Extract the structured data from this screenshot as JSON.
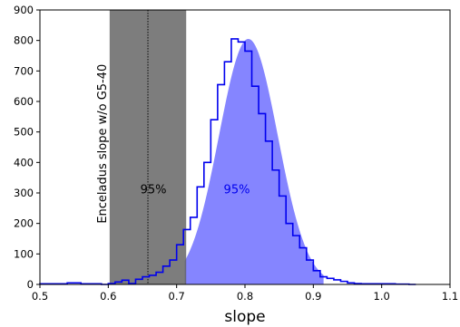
{
  "chart_data": {
    "type": "histogram",
    "xlabel": "slope",
    "ylabel": "",
    "xlim": [
      0.5,
      1.1
    ],
    "ylim": [
      0,
      900
    ],
    "x_ticks": [
      "0.5",
      "0.6",
      "0.7",
      "0.8",
      "0.9",
      "1.0",
      "1.1"
    ],
    "y_ticks": [
      "0",
      "100",
      "200",
      "300",
      "400",
      "500",
      "600",
      "700",
      "800",
      "900"
    ],
    "grid": false,
    "histogram": {
      "color": "#0000ee",
      "bin_width": 0.01,
      "bin_starts": [
        0.5,
        0.51,
        0.52,
        0.53,
        0.54,
        0.55,
        0.56,
        0.57,
        0.58,
        0.59,
        0.6,
        0.61,
        0.62,
        0.63,
        0.64,
        0.65,
        0.66,
        0.67,
        0.68,
        0.69,
        0.7,
        0.71,
        0.72,
        0.73,
        0.74,
        0.75,
        0.76,
        0.77,
        0.78,
        0.79,
        0.8,
        0.81,
        0.82,
        0.83,
        0.84,
        0.85,
        0.86,
        0.87,
        0.88,
        0.89,
        0.9,
        0.91,
        0.92,
        0.93,
        0.94,
        0.95,
        0.96,
        0.97,
        0.98,
        0.99,
        1.0,
        1.01,
        1.02,
        1.03,
        1.04
      ],
      "counts": [
        2,
        2,
        2,
        2,
        5,
        5,
        2,
        2,
        2,
        0,
        3,
        8,
        14,
        3,
        17,
        25,
        30,
        40,
        60,
        80,
        130,
        180,
        220,
        320,
        400,
        540,
        655,
        730,
        805,
        795,
        765,
        650,
        560,
        470,
        375,
        290,
        200,
        160,
        120,
        80,
        45,
        25,
        20,
        15,
        10,
        5,
        3,
        2,
        2,
        2,
        2,
        2,
        1,
        1,
        0
      ]
    },
    "gaussian_fit": {
      "color": "#7070ff",
      "mean": 0.805,
      "amplitude": 805,
      "sigma": 0.043,
      "shaded_range": [
        0.712,
        0.915
      ],
      "annotation": "95%",
      "annotation_at": [
        0.8,
        310
      ]
    },
    "reference_band": {
      "label": "Enceladus slope w/o G5-40",
      "center": 0.658,
      "range": [
        0.602,
        0.714
      ],
      "color": "#606060",
      "annotation": "95%",
      "annotation_at": [
        0.658,
        310
      ]
    }
  }
}
